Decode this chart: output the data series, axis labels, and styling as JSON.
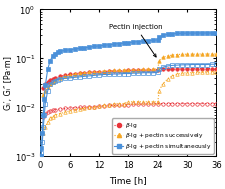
{
  "xlabel": "Time [h]",
  "ylabel": "Gᵢ′, Gᵢ″ [Pa·m]",
  "xlim": [
    0,
    36
  ],
  "annotation": "Pectin injection",
  "colors": {
    "beta_lg": "#e8343a",
    "successive": "#f5a623",
    "simultaneous": "#4a90d9"
  },
  "beta_lg_Gp": {
    "t": [
      0.5,
      1.0,
      1.5,
      2.0,
      2.5,
      3.0,
      4.0,
      5.0,
      6.0,
      7.0,
      8.0,
      9.0,
      10.0,
      11.0,
      12.0,
      13.0,
      14.0,
      15.0,
      16.0,
      17.0,
      18.0,
      19.0,
      20.0,
      21.0,
      22.0,
      23.0,
      24.0,
      25.0,
      26.0,
      27.0,
      28.0,
      29.0,
      30.0,
      31.0,
      32.0,
      33.0,
      34.0,
      35.0,
      36.0
    ],
    "v": [
      0.025,
      0.03,
      0.033,
      0.036,
      0.038,
      0.04,
      0.043,
      0.045,
      0.047,
      0.049,
      0.05,
      0.051,
      0.052,
      0.053,
      0.054,
      0.054,
      0.055,
      0.055,
      0.056,
      0.056,
      0.057,
      0.057,
      0.058,
      0.058,
      0.059,
      0.059,
      0.059,
      0.06,
      0.06,
      0.06,
      0.061,
      0.061,
      0.061,
      0.062,
      0.062,
      0.062,
      0.062,
      0.062,
      0.062
    ]
  },
  "beta_lg_Gpp": {
    "t": [
      0.5,
      1.0,
      1.5,
      2.0,
      2.5,
      3.0,
      4.0,
      5.0,
      6.0,
      7.0,
      8.0,
      9.0,
      10.0,
      11.0,
      12.0,
      13.0,
      14.0,
      15.0,
      16.0,
      17.0,
      18.0,
      19.0,
      20.0,
      21.0,
      22.0,
      23.0,
      24.0,
      25.0,
      26.0,
      27.0,
      28.0,
      29.0,
      30.0,
      31.0,
      32.0,
      33.0,
      34.0,
      35.0,
      36.0
    ],
    "v": [
      0.0065,
      0.0075,
      0.008,
      0.0085,
      0.0087,
      0.009,
      0.0093,
      0.0095,
      0.0097,
      0.0099,
      0.01,
      0.01,
      0.0102,
      0.0104,
      0.0106,
      0.0108,
      0.011,
      0.011,
      0.011,
      0.0112,
      0.0114,
      0.0115,
      0.0116,
      0.0117,
      0.0118,
      0.0119,
      0.012,
      0.012,
      0.012,
      0.012,
      0.012,
      0.012,
      0.012,
      0.012,
      0.012,
      0.012,
      0.012,
      0.012,
      0.012
    ]
  },
  "successive_Gp": {
    "t": [
      0.5,
      1.0,
      1.5,
      2.0,
      2.5,
      3.0,
      4.0,
      5.0,
      6.0,
      7.0,
      8.0,
      9.0,
      10.0,
      11.0,
      12.0,
      13.0,
      14.0,
      15.0,
      16.0,
      17.0,
      18.0,
      19.0,
      20.0,
      21.0,
      22.0,
      23.0,
      24.0,
      24.3,
      25.0,
      26.0,
      27.0,
      28.0,
      29.0,
      30.0,
      31.0,
      32.0,
      33.0,
      34.0,
      35.0,
      36.0
    ],
    "v": [
      0.018,
      0.022,
      0.026,
      0.03,
      0.033,
      0.036,
      0.04,
      0.043,
      0.046,
      0.048,
      0.05,
      0.051,
      0.052,
      0.053,
      0.054,
      0.055,
      0.056,
      0.057,
      0.057,
      0.058,
      0.058,
      0.059,
      0.059,
      0.06,
      0.06,
      0.06,
      0.061,
      0.09,
      0.105,
      0.112,
      0.117,
      0.12,
      0.121,
      0.122,
      0.122,
      0.122,
      0.123,
      0.123,
      0.123,
      0.123
    ]
  },
  "successive_Gpp": {
    "t": [
      0.5,
      1.0,
      1.5,
      2.0,
      2.5,
      3.0,
      4.0,
      5.0,
      6.0,
      7.0,
      8.0,
      9.0,
      10.0,
      11.0,
      12.0,
      13.0,
      14.0,
      15.0,
      16.0,
      17.0,
      18.0,
      19.0,
      20.0,
      21.0,
      22.0,
      23.0,
      24.0,
      24.3,
      25.0,
      26.0,
      27.0,
      28.0,
      29.0,
      30.0,
      31.0,
      32.0,
      33.0,
      34.0,
      35.0,
      36.0
    ],
    "v": [
      0.003,
      0.004,
      0.005,
      0.006,
      0.0065,
      0.007,
      0.0075,
      0.008,
      0.0085,
      0.009,
      0.0093,
      0.0096,
      0.01,
      0.01,
      0.0105,
      0.011,
      0.011,
      0.012,
      0.012,
      0.012,
      0.013,
      0.013,
      0.013,
      0.013,
      0.013,
      0.013,
      0.013,
      0.022,
      0.03,
      0.038,
      0.044,
      0.048,
      0.05,
      0.051,
      0.051,
      0.052,
      0.052,
      0.053,
      0.053,
      0.053
    ]
  },
  "simultaneous_Gp": {
    "t": [
      0.1,
      0.2,
      0.4,
      0.6,
      0.8,
      1.0,
      1.5,
      2.0,
      2.5,
      3.0,
      3.5,
      4.0,
      5.0,
      6.0,
      7.0,
      8.0,
      9.0,
      10.0,
      11.0,
      12.0,
      13.0,
      14.0,
      15.0,
      16.0,
      17.0,
      18.0,
      19.0,
      20.0,
      21.0,
      22.0,
      23.0,
      24.0,
      24.3,
      25.0,
      26.0,
      27.0,
      28.0,
      29.0,
      30.0,
      31.0,
      32.0,
      33.0,
      34.0,
      35.0,
      36.0
    ],
    "v": [
      0.001,
      0.0015,
      0.003,
      0.007,
      0.015,
      0.028,
      0.06,
      0.09,
      0.11,
      0.125,
      0.135,
      0.14,
      0.145,
      0.15,
      0.155,
      0.16,
      0.165,
      0.17,
      0.175,
      0.18,
      0.185,
      0.19,
      0.195,
      0.2,
      0.205,
      0.21,
      0.215,
      0.22,
      0.225,
      0.23,
      0.235,
      0.238,
      0.27,
      0.295,
      0.31,
      0.318,
      0.322,
      0.325,
      0.327,
      0.328,
      0.328,
      0.329,
      0.329,
      0.329,
      0.33
    ]
  },
  "simultaneous_Gpp": {
    "t": [
      0.1,
      0.2,
      0.4,
      0.6,
      0.8,
      1.0,
      1.5,
      2.0,
      2.5,
      3.0,
      3.5,
      4.0,
      5.0,
      6.0,
      7.0,
      8.0,
      9.0,
      10.0,
      11.0,
      12.0,
      13.0,
      14.0,
      15.0,
      16.0,
      17.0,
      18.0,
      19.0,
      20.0,
      21.0,
      22.0,
      23.0,
      24.0,
      24.3,
      25.0,
      26.0,
      27.0,
      28.0,
      29.0,
      30.0,
      31.0,
      32.0,
      33.0,
      34.0,
      35.0,
      36.0
    ],
    "v": [
      0.001,
      0.0012,
      0.002,
      0.004,
      0.007,
      0.012,
      0.022,
      0.03,
      0.033,
      0.035,
      0.037,
      0.038,
      0.039,
      0.04,
      0.041,
      0.042,
      0.043,
      0.044,
      0.045,
      0.046,
      0.047,
      0.047,
      0.048,
      0.048,
      0.049,
      0.049,
      0.05,
      0.05,
      0.051,
      0.051,
      0.051,
      0.052,
      0.06,
      0.066,
      0.07,
      0.072,
      0.073,
      0.074,
      0.074,
      0.075,
      0.075,
      0.075,
      0.075,
      0.076,
      0.076
    ]
  }
}
